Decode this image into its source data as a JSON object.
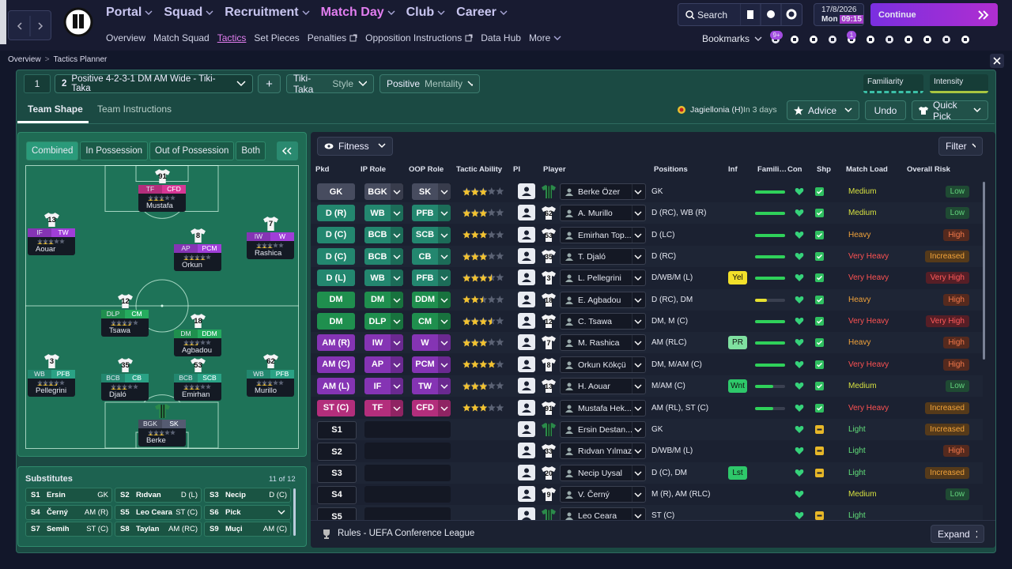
{
  "header": {
    "nav": [
      "Portal",
      "Squad",
      "Recruitment",
      "Match Day",
      "Club",
      "Career"
    ],
    "subnav": [
      "Overview",
      "Match Squad",
      "Tactics",
      "Set Pieces",
      "Penalties",
      "Opposition Instructions",
      "Data Hub",
      "More"
    ],
    "search": "Search",
    "date": "17/8/2026",
    "day": "Mon",
    "time": "09:15",
    "continue": "Continue",
    "bookmarks": "Bookmarks",
    "bookmark_badges": [
      "9+",
      "1"
    ]
  },
  "breadcrumb": [
    "Overview",
    "Tactics Planner"
  ],
  "tactic_bar": {
    "slots": [
      1,
      2
    ],
    "name": "Positive 4-2-3-1 DM AM Wide - Tiki-Taka",
    "add": "+",
    "style_value": "Tiki-Taka",
    "style_label": "Style",
    "mentality_value": "Positive",
    "mentality_label": "Mentality",
    "familiarity": "Familiarity",
    "intensity": "Intensity"
  },
  "tabs": [
    "Team Shape",
    "Team Instructions"
  ],
  "next_match": {
    "opponent": "Jagiellonia (H)",
    "when": "In 3 days"
  },
  "actions": [
    "Advice",
    "Undo",
    "Quick Pick"
  ],
  "pitch": {
    "views": [
      "Combined",
      "In Possession",
      "Out of Possession",
      "Both"
    ],
    "players": [
      {
        "number": 91,
        "ip_role": "TF",
        "oop_role": "CFD",
        "name": "Mustafa",
        "rating": 3
      },
      {
        "number": 13,
        "ip_role": "IF",
        "oop_role": "TW",
        "name": "Aouar",
        "rating": 3
      },
      {
        "number": 8,
        "ip_role": "AP",
        "oop_role": "PCM",
        "name": "Orkun",
        "rating": 4
      },
      {
        "number": 7,
        "ip_role": "IW",
        "oop_role": "W",
        "name": "Rashica",
        "rating": 3
      },
      {
        "number": 12,
        "ip_role": "DLP",
        "oop_role": "CM",
        "name": "Tsawa",
        "rating": 3.5
      },
      {
        "number": 18,
        "ip_role": "DM",
        "oop_role": "DDM",
        "name": "Agbadou",
        "rating": 2.5
      },
      {
        "number": 3,
        "ip_role": "WB",
        "oop_role": "PFB",
        "name": "Pellegrini",
        "rating": 3.5
      },
      {
        "number": 35,
        "ip_role": "BCB",
        "oop_role": "CB",
        "name": "Djaló",
        "rating": 3
      },
      {
        "number": 53,
        "ip_role": "BCB",
        "oop_role": "SCB",
        "name": "Emirhan",
        "rating": 3
      },
      {
        "number": 62,
        "ip_role": "WB",
        "oop_role": "PFB",
        "name": "Murillo",
        "rating": 3
      },
      {
        "ip_role": "BGK",
        "oop_role": "SK",
        "name": "Berke",
        "rating": 3
      }
    ]
  },
  "substitutes": {
    "title": "Substitutes",
    "count": "11 of 12",
    "entries": [
      {
        "slot": "S1",
        "name": "Ersin",
        "position": "GK"
      },
      {
        "slot": "S2",
        "name": "Rıdvan",
        "position": "D (L)"
      },
      {
        "slot": "S3",
        "name": "Necip",
        "position": "D (C)"
      },
      {
        "slot": "S4",
        "name": "Černý",
        "position": "AM (R)"
      },
      {
        "slot": "S5",
        "name": "Leo Ceara",
        "position": "ST (C)"
      },
      {
        "slot": "S6",
        "name": "Pick"
      },
      {
        "slot": "S7",
        "name": "Semih",
        "position": "ST (C)"
      },
      {
        "slot": "S8",
        "name": "Taylan",
        "position": "AM (RC)"
      },
      {
        "slot": "S9",
        "name": "Muçi",
        "position": "AM (C)"
      }
    ]
  },
  "table": {
    "filter": "Fitness",
    "filter_button": "Filter",
    "columns": [
      "Pkd",
      "IP Role",
      "OOP Role",
      "Tactic Ability",
      "PI",
      "Player",
      "Positions",
      "Inf",
      "Famili…",
      "Con",
      "Shp",
      "Match Load",
      "Overall Risk"
    ],
    "rows": [
      {
        "pos": "GK",
        "ip_role": "BGK",
        "oop_role": "SK",
        "rating": 3,
        "name": "Berke Özer",
        "positions": "GK",
        "familiarity": 100,
        "match_load": "Medium",
        "risk": "Low"
      },
      {
        "pos": "D (R)",
        "ip_role": "WB",
        "oop_role": "PFB",
        "rating": 3,
        "number": 62,
        "name": "A. Murillo",
        "positions": "D (RC), WB (R)",
        "familiarity": 100,
        "match_load": "Medium",
        "risk": "Low"
      },
      {
        "pos": "D (C)",
        "ip_role": "BCB",
        "oop_role": "SCB",
        "rating": 3,
        "number": 53,
        "name": "Emirhan Top...",
        "positions": "D (LC)",
        "familiarity": 100,
        "match_load": "Heavy",
        "risk": "High"
      },
      {
        "pos": "D (C)",
        "ip_role": "BCB",
        "oop_role": "CB",
        "rating": 3,
        "number": 35,
        "name": "T. Djaló",
        "positions": "D (RC)",
        "familiarity": 100,
        "match_load": "Very Heavy",
        "risk": "Increased"
      },
      {
        "pos": "D (L)",
        "ip_role": "WB",
        "oop_role": "PFB",
        "rating": 3.5,
        "number": 3,
        "name": "L. Pellegrini",
        "positions": "D/WB/M (L)",
        "inf": "Yel",
        "familiarity": 100,
        "match_load": "Very Heavy",
        "risk": "Very High"
      },
      {
        "pos": "DM",
        "ip_role": "DM",
        "oop_role": "DDM",
        "rating": 2.5,
        "number": 18,
        "name": "E. Agbadou",
        "positions": "D (RC), DM",
        "familiarity": 40,
        "match_load": "Heavy",
        "risk": "High"
      },
      {
        "pos": "DM",
        "ip_role": "DLP",
        "oop_role": "CM",
        "rating": 3.5,
        "number": 12,
        "name": "C. Tsawa",
        "positions": "DM, M (C)",
        "familiarity": 100,
        "match_load": "Very Heavy",
        "risk": "Very High"
      },
      {
        "pos": "AM (R)",
        "ip_role": "IW",
        "oop_role": "W",
        "rating": 3,
        "number": 7,
        "name": "M. Rashica",
        "positions": "AM (RLC)",
        "inf": "PR",
        "familiarity": 100,
        "match_load": "Heavy",
        "risk": "High"
      },
      {
        "pos": "AM (C)",
        "ip_role": "AP",
        "oop_role": "PCM",
        "rating": 4,
        "number": 8,
        "name": "Orkun Kökçü",
        "positions": "DM, M/AM (C)",
        "familiarity": 100,
        "match_load": "Very Heavy",
        "risk": "High"
      },
      {
        "pos": "AM (L)",
        "ip_role": "IF",
        "oop_role": "TW",
        "rating": 3,
        "number": 13,
        "name": "H. Aouar",
        "positions": "M/AM (C)",
        "inf": "Wnt",
        "familiarity": 60,
        "match_load": "Medium",
        "risk": "Low"
      },
      {
        "pos": "ST (C)",
        "ip_role": "TF",
        "oop_role": "CFD",
        "rating": 3,
        "number": 91,
        "name": "Mustafa Hek...",
        "positions": "AM (RL), ST (C)",
        "familiarity": 60,
        "match_load": "Very Heavy",
        "risk": "Increased"
      },
      {
        "pos": "S1",
        "name": "Ersin Destan...",
        "positions": "GK",
        "match_load": "Light",
        "risk": "Increased"
      },
      {
        "pos": "S2",
        "number": 33,
        "name": "Rıdvan Yılmaz",
        "positions": "D/WB/M (L)",
        "match_load": "Light",
        "risk": "High"
      },
      {
        "pos": "S3",
        "number": 20,
        "name": "Necip Uysal",
        "positions": "D (C), DM",
        "inf": "Lst",
        "match_load": "Light",
        "risk": "Increased"
      },
      {
        "pos": "S4",
        "number": 9,
        "name": "V. Černý",
        "positions": "M (R), AM (RLC)",
        "match_load": "Medium",
        "risk": "Low"
      },
      {
        "pos": "S5",
        "name": "Leo Ceara",
        "positions": "ST (C)",
        "match_load": "Light"
      }
    ],
    "footer": "Rules - UEFA Conference League",
    "expand": "Expand"
  }
}
